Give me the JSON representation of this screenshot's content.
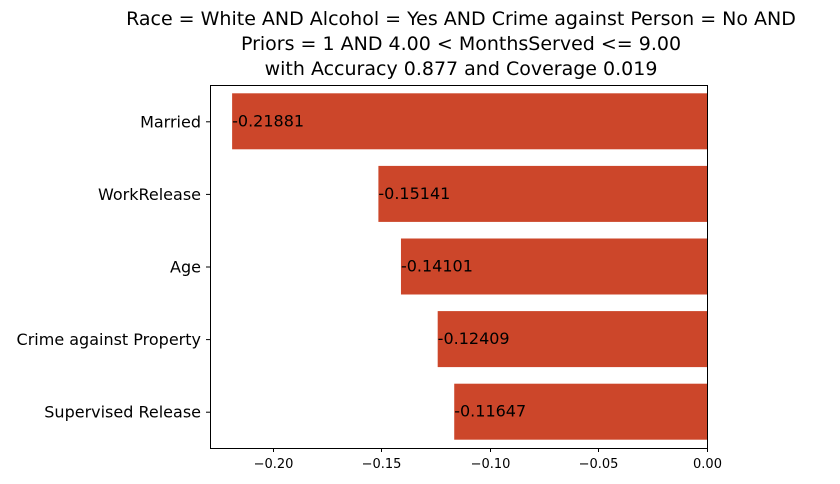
{
  "chart_data": {
    "type": "bar",
    "orientation": "horizontal",
    "title_lines": [
      "Race = White AND Alcohol = Yes AND Crime against Person = No AND",
      "Priors = 1 AND 4.00 < MonthsServed <= 9.00",
      "with Accuracy 0.877 and Coverage 0.019"
    ],
    "categories": [
      "Married",
      "WorkRelease",
      "Age",
      "Crime against Property",
      "Supervised Release"
    ],
    "values": [
      -0.21881,
      -0.15141,
      -0.14101,
      -0.12409,
      -0.11647
    ],
    "value_labels": [
      "-0.21881",
      "-0.15141",
      "-0.14101",
      "-0.12409",
      "-0.11647"
    ],
    "xlim": [
      -0.229,
      0.0
    ],
    "xticks": [
      -0.2,
      -0.15,
      -0.1,
      -0.05,
      0.0
    ],
    "xtick_labels": [
      "−0.20",
      "−0.15",
      "−0.10",
      "−0.05",
      "0.00"
    ],
    "bar_color": "#cc462a",
    "grid": false,
    "xlabel": "",
    "ylabel": ""
  }
}
